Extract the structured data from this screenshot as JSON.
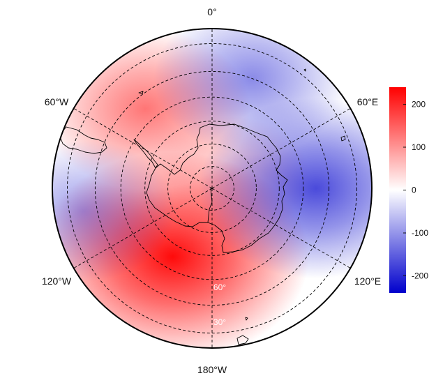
{
  "map": {
    "projection": "polar stereographic (south pole)",
    "longitude_labels": [
      "0°",
      "60°E",
      "120°E",
      "180°W",
      "120°W",
      "60°W"
    ],
    "latitude_labels": [
      "60°",
      "30°"
    ],
    "graticule_style": "dashed",
    "field": {
      "description": "anomaly field",
      "highs": [
        {
          "name": "south-pacific-high",
          "lon": -150,
          "lat": -55,
          "value": 230
        },
        {
          "name": "south-atlantic-high",
          "lon": -40,
          "lat": -45,
          "value": 130
        },
        {
          "name": "antarctic-high",
          "lon": 60,
          "lat": -80,
          "value": 50
        }
      ],
      "lows": [
        {
          "name": "indian-ocean-low",
          "lon": 90,
          "lat": -45,
          "value": -170
        },
        {
          "name": "south-atlantic-low",
          "lon": 20,
          "lat": -40,
          "value": -110
        },
        {
          "name": "southeast-pacific-low",
          "lon": -100,
          "lat": -35,
          "value": -90
        }
      ]
    }
  },
  "colorbar": {
    "min": -240,
    "max": 240,
    "ticks": [
      "200",
      "100",
      "0",
      "-100",
      "-200"
    ],
    "tick_values": [
      200,
      100,
      0,
      -100,
      -200
    ],
    "colors": {
      "low": "#0000cc",
      "mid": "#ffffff",
      "high": "#ff0000"
    }
  }
}
